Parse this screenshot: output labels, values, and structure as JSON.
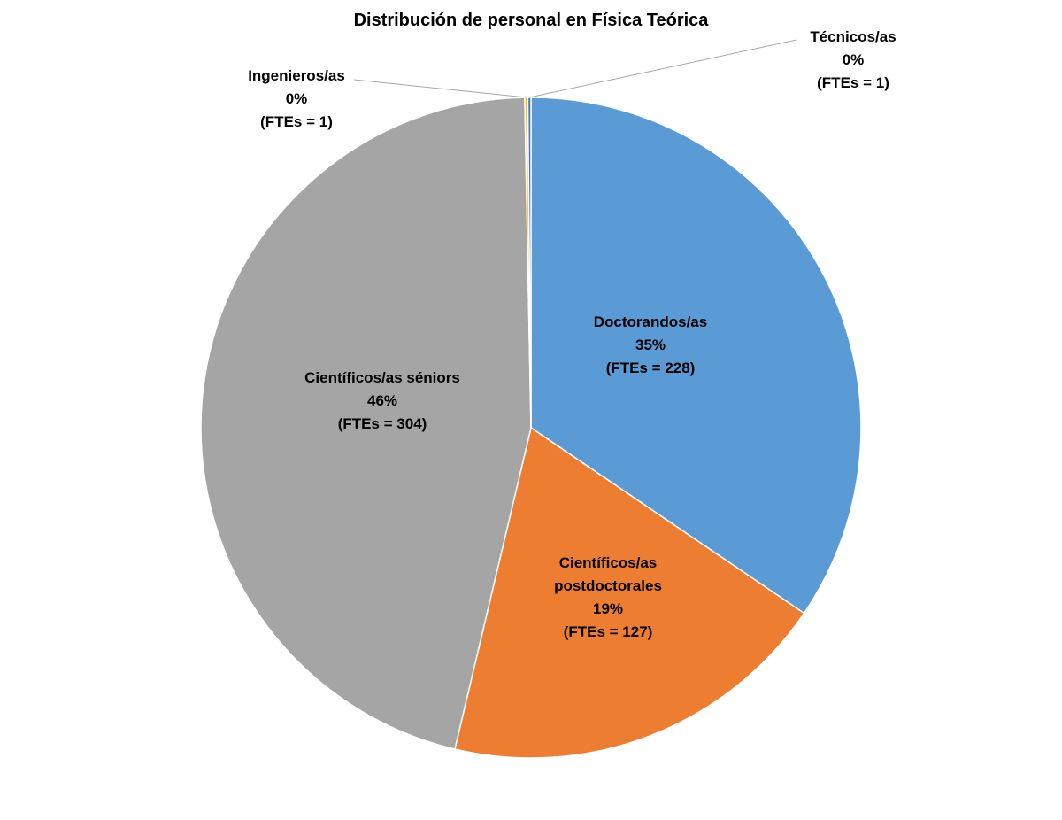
{
  "chart_data": {
    "type": "pie",
    "title": "Distribución de personal en Física Teórica",
    "categories": [
      "Doctorandos/as",
      "Científicos/as postdoctorales",
      "Científicos/as séniors",
      "Ingenieros/as",
      "Técnicos/as"
    ],
    "values": [
      228,
      127,
      304,
      1,
      1
    ],
    "value_labels": [
      "(FTEs = 228)",
      "(FTEs = 127)",
      "(FTEs = 304)",
      "(FTEs = 1)",
      "(FTEs = 1)"
    ],
    "percent_labels": [
      "35%",
      "19%",
      "46%",
      "0%",
      "0%"
    ],
    "colors": [
      "#5b9bd5",
      "#ed7d31",
      "#a5a5a5",
      "#ffc000",
      "#4472c4"
    ]
  }
}
